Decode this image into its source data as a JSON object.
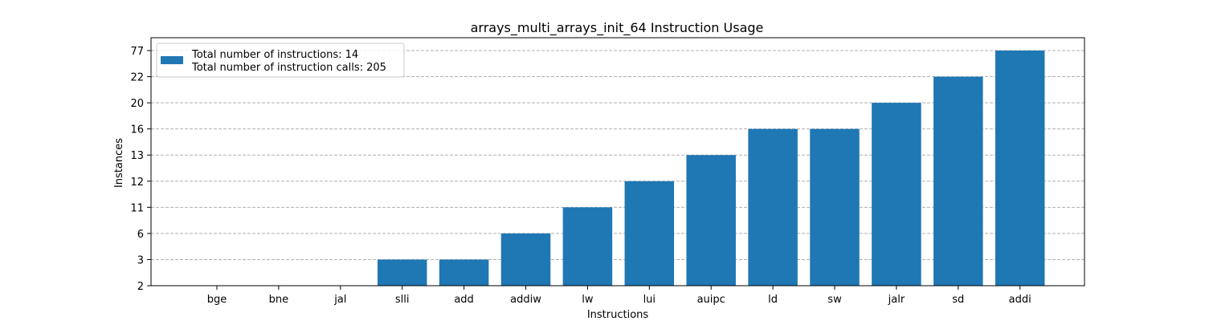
{
  "chart_data": {
    "type": "bar",
    "title": "arrays_multi_arrays_init_64 Instruction Usage",
    "xlabel": "Instructions",
    "ylabel": "Instances",
    "categories": [
      "bge",
      "bne",
      "jal",
      "slli",
      "add",
      "addiw",
      "lw",
      "lui",
      "auipc",
      "ld",
      "sw",
      "jalr",
      "sd",
      "addi"
    ],
    "values": [
      2,
      2,
      2,
      3,
      3,
      6,
      11,
      12,
      13,
      16,
      16,
      20,
      22,
      77
    ],
    "y_ticks": [
      "2",
      "3",
      "6",
      "11",
      "12",
      "13",
      "16",
      "20",
      "22",
      "77"
    ],
    "y_axis_scale": "categorical (ticks at the distinct values, evenly spaced)",
    "grid": "horizontal dashed",
    "legend_position": "top-left",
    "legend": {
      "line1": "Total number of instructions: 14",
      "line2": "Total number of instruction calls: 205"
    },
    "colors": {
      "bar": "#1f77b4",
      "grid": "#b0b0b0"
    }
  }
}
